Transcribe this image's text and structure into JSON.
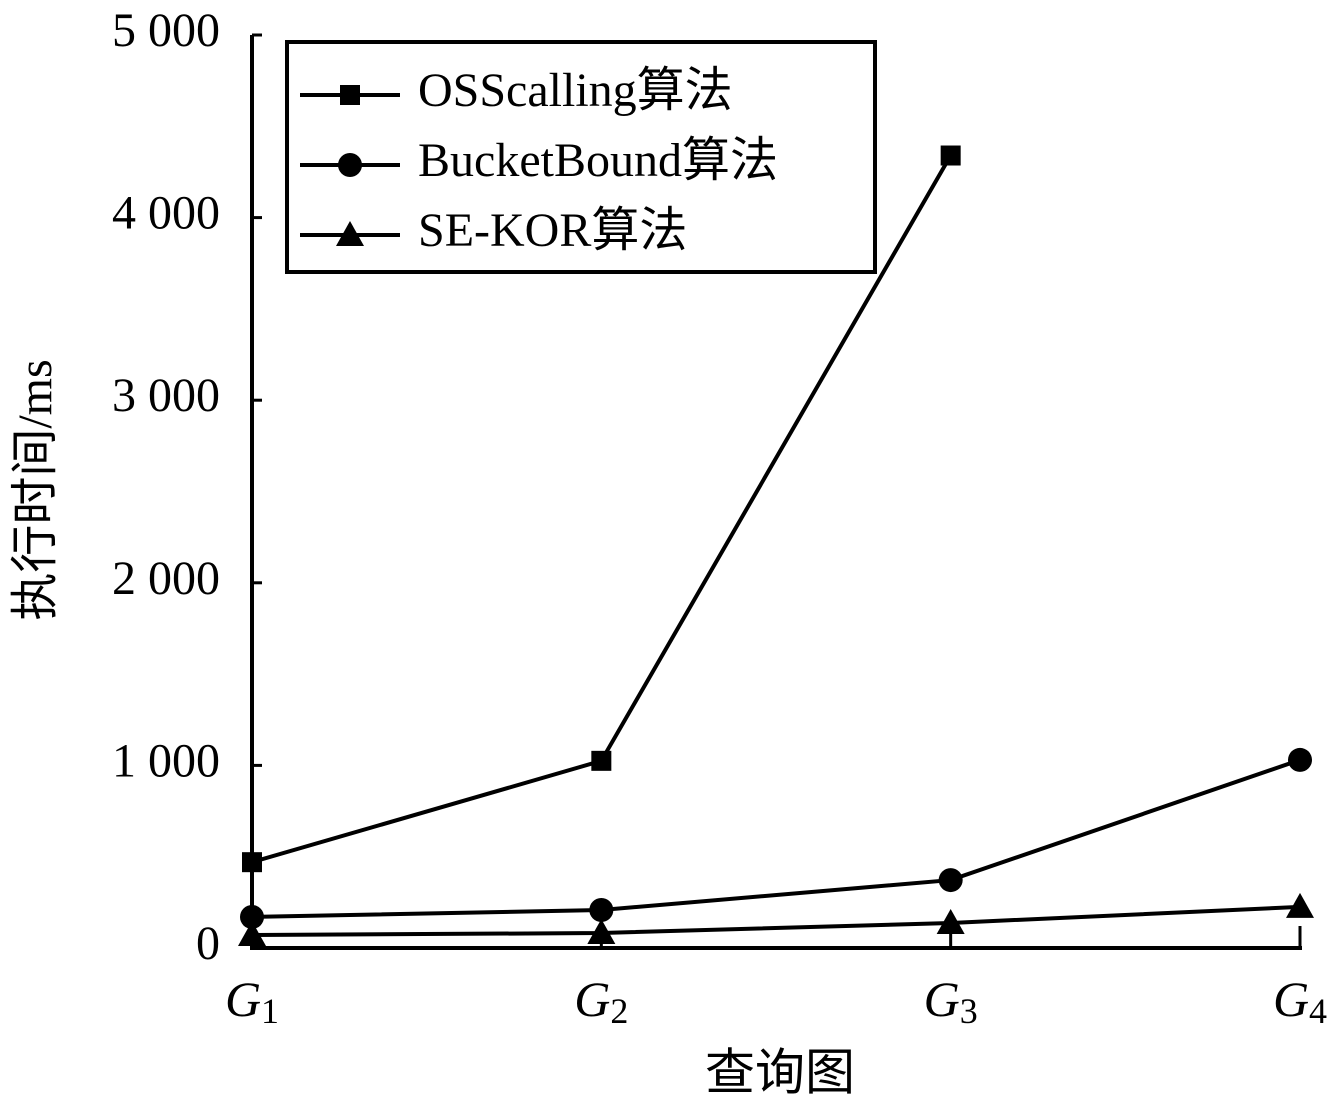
{
  "chart_data": {
    "type": "line",
    "x_label": "查询图",
    "y_label": "执行时间/ms",
    "categories": [
      "G1",
      "G2",
      "G3",
      "G4"
    ],
    "series": [
      {
        "name": "OSScalling算法",
        "color": "#000000",
        "marker": "square",
        "values": [
          470,
          1025,
          4340,
          null
        ]
      },
      {
        "name": "BucketBound算法",
        "color": "#000000",
        "marker": "circle",
        "values": [
          170,
          208,
          372,
          1030
        ]
      },
      {
        "name": "SE-KOR算法",
        "color": "#000000",
        "marker": "triangle",
        "values": [
          71,
          82,
          137,
          225
        ]
      }
    ],
    "ylim": [
      0,
      5000
    ],
    "yticks": [
      0,
      {
        "value": 1000,
        "label": "1 000"
      },
      {
        "value": 2000,
        "label": "2 000"
      },
      {
        "value": 3000,
        "label": "3 000"
      },
      {
        "value": 4000,
        "label": "4 000"
      },
      {
        "value": 5000,
        "label": "5 000"
      }
    ],
    "legend": "upper left"
  }
}
